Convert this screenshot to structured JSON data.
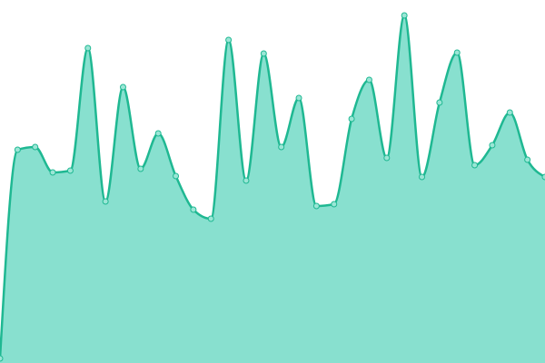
{
  "chart_data": {
    "type": "area",
    "categories": [
      null,
      null,
      null,
      null,
      null,
      null,
      null,
      null,
      null,
      null,
      null,
      null,
      null,
      null,
      null,
      null,
      null,
      null,
      null,
      null,
      null,
      null,
      null,
      null,
      null,
      null,
      null,
      null,
      null,
      null,
      null,
      null
    ],
    "values": [
      5,
      235,
      238,
      210,
      212,
      347,
      178,
      304,
      214,
      253,
      206,
      169,
      159,
      356,
      201,
      341,
      238,
      292,
      173,
      175,
      269,
      312,
      226,
      383,
      205,
      287,
      342,
      218,
      240,
      276,
      224,
      205
    ],
    "ylim": [
      0,
      400
    ],
    "line_color": "#1fb892",
    "fill_color": "#88e0cf",
    "marker_fill": "#9be6d6"
  }
}
